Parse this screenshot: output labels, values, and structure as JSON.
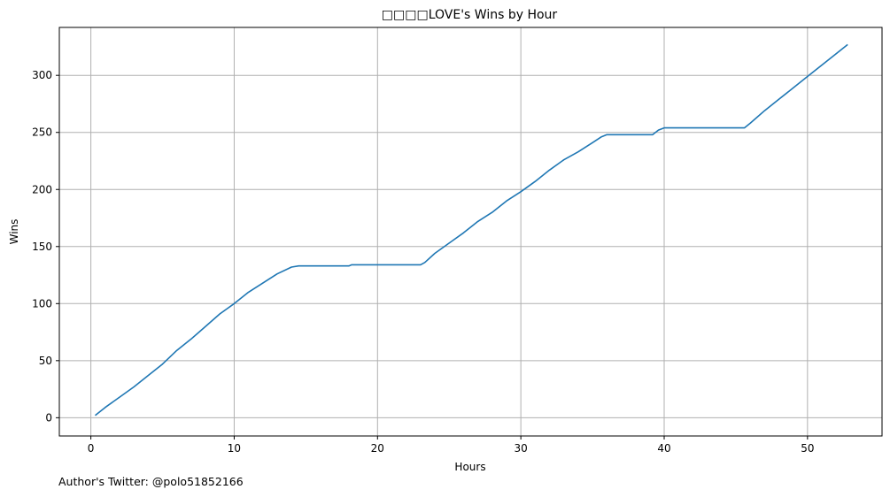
{
  "chart_data": {
    "type": "line",
    "title": "□□□□LOVE's Wins by Hour",
    "xlabel": "Hours",
    "ylabel": "Wins",
    "xlim": [
      -2.2,
      55.2
    ],
    "ylim": [
      -16,
      342
    ],
    "xticks": [
      0,
      10,
      20,
      30,
      40,
      50
    ],
    "yticks": [
      0,
      50,
      100,
      150,
      200,
      250,
      300
    ],
    "grid": true,
    "line_color": "#1f77b4",
    "grid_color": "#b0b0b0",
    "series": [
      {
        "x": [
          0.3,
          1.0,
          2.0,
          3.0,
          4.0,
          5.0,
          6.0,
          7.0,
          8.0,
          9.0,
          10.0,
          11.0,
          12.0,
          13.0,
          14.0,
          14.5,
          18.0,
          18.2,
          23.0,
          23.3,
          24.0,
          25.0,
          26.0,
          27.0,
          28.0,
          29.0,
          30.0,
          31.0,
          32.0,
          33.0,
          34.0,
          35.0,
          35.6,
          36.0,
          39.2,
          39.6,
          40.0,
          45.6,
          46.0,
          47.0,
          48.0,
          49.0,
          50.0,
          51.0,
          52.0,
          52.8
        ],
        "y": [
          2,
          9,
          18,
          27,
          37,
          47,
          59,
          69,
          80,
          91,
          100,
          110,
          118,
          126,
          132,
          133,
          133,
          134,
          134,
          136,
          144,
          153,
          162,
          172,
          180,
          190,
          198,
          207,
          217,
          226,
          233,
          241,
          246,
          248,
          248,
          252,
          254,
          254,
          258,
          269,
          279,
          289,
          299,
          309,
          319,
          327
        ]
      }
    ]
  },
  "footnote": "Author's Twitter: @polo51852166"
}
